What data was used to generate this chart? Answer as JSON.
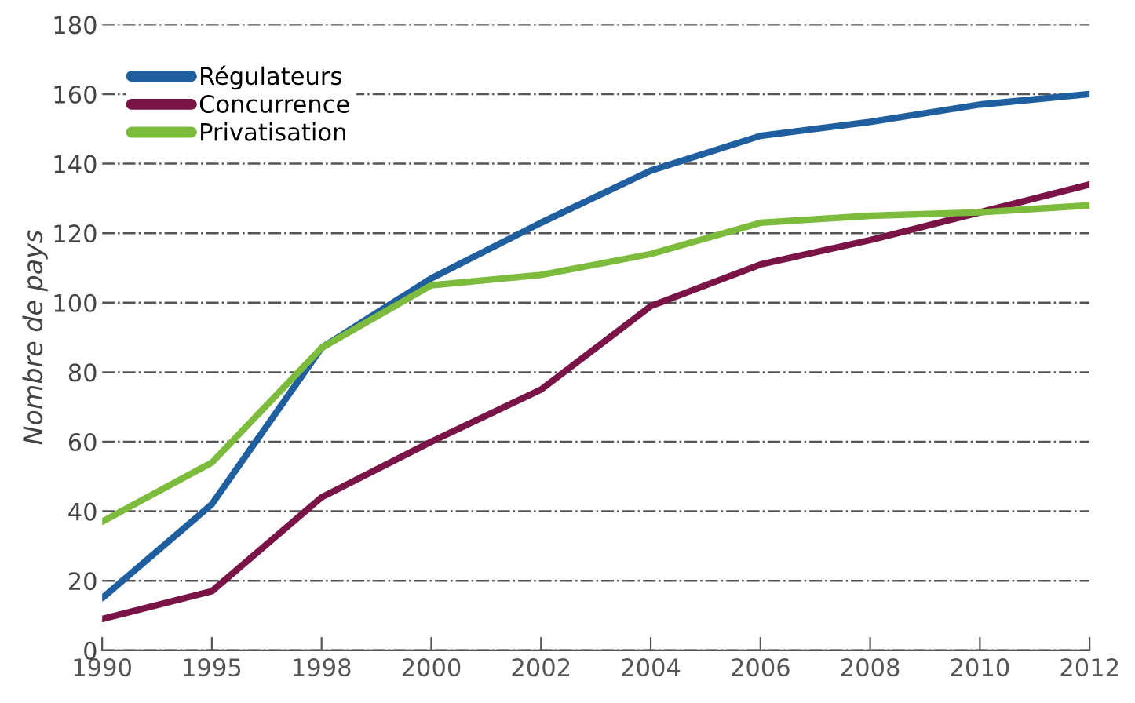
{
  "chart_data": {
    "type": "line",
    "ylabel": "Nombre de pays",
    "categories": [
      "1990",
      "1995",
      "1998",
      "2000",
      "2002",
      "2004",
      "2006",
      "2008",
      "2010",
      "2012"
    ],
    "series": [
      {
        "name": "Régulateurs",
        "color": "#1f5f9f",
        "values": [
          15,
          42,
          87,
          107,
          123,
          138,
          148,
          152,
          157,
          160
        ]
      },
      {
        "name": "Concurrence",
        "color": "#7a1446",
        "values": [
          9,
          17,
          44,
          60,
          75,
          99,
          111,
          118,
          126,
          134
        ]
      },
      {
        "name": "Privatisation",
        "color": "#7dbb3c",
        "values": [
          37,
          54,
          87,
          105,
          108,
          114,
          123,
          125,
          126,
          128
        ]
      }
    ],
    "ylim": [
      0,
      180
    ],
    "yticks": [
      0,
      20,
      40,
      60,
      80,
      100,
      120,
      140,
      160,
      180
    ],
    "grid": "y",
    "legend": "top left",
    "marker": "none",
    "line_style": "solid"
  }
}
